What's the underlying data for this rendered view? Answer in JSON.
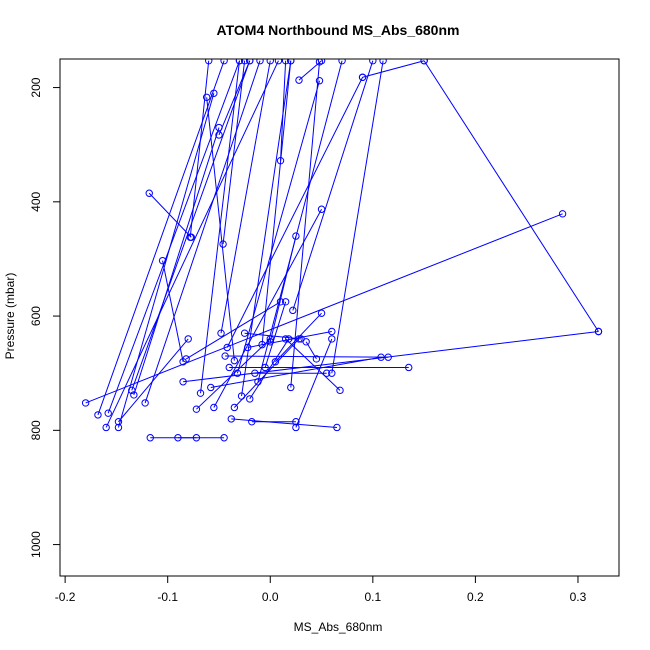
{
  "chart_data": {
    "type": "line",
    "title": "ATOM4 Northbound MS_Abs_680nm",
    "xlabel": "MS_Abs_680nm",
    "ylabel": "Pressure (mbar)",
    "xlim": [
      -0.205,
      0.34
    ],
    "ylim": [
      1055,
      150
    ],
    "y_reversed": true,
    "x_ticks": [
      -0.2,
      -0.1,
      0.0,
      0.1,
      0.2,
      0.3
    ],
    "x_tick_labels": [
      "-0.2",
      "-0.1",
      "0.0",
      "0.1",
      "0.2",
      "0.3"
    ],
    "y_ticks": [
      200,
      400,
      600,
      800,
      1000
    ],
    "y_tick_labels": [
      "200",
      "400",
      "600",
      "800",
      "1000"
    ],
    "grid": false,
    "series_color": "#0000ff",
    "marker": "open-circle",
    "series": [
      {
        "values": [
          [
            -0.18,
            752
          ],
          [
            0.285,
            421
          ]
        ]
      },
      {
        "values": [
          [
            -0.168,
            773
          ],
          [
            -0.045,
            153
          ]
        ]
      },
      {
        "values": [
          [
            -0.16,
            795
          ],
          [
            0.008,
            153
          ]
        ]
      },
      {
        "values": [
          [
            -0.158,
            770
          ],
          [
            -0.03,
            153
          ]
        ]
      },
      {
        "values": [
          [
            -0.148,
            795
          ],
          [
            -0.055,
            210
          ]
        ]
      },
      {
        "values": [
          [
            -0.148,
            785
          ],
          [
            -0.08,
            640
          ]
        ]
      },
      {
        "values": [
          [
            -0.135,
            730
          ],
          [
            -0.02,
            153
          ]
        ]
      },
      {
        "values": [
          [
            -0.133,
            738
          ],
          [
            -0.05,
            270
          ]
        ]
      },
      {
        "values": [
          [
            -0.122,
            752
          ],
          [
            -0.01,
            153
          ]
        ]
      },
      {
        "values": [
          [
            -0.118,
            385
          ],
          [
            -0.077,
            462
          ]
        ]
      },
      {
        "values": [
          [
            -0.117,
            813
          ],
          [
            -0.045,
            813
          ]
        ]
      },
      {
        "values": [
          [
            -0.105,
            503
          ],
          [
            -0.085,
            680
          ]
        ]
      },
      {
        "values": [
          [
            -0.09,
            813
          ],
          [
            -0.072,
            813
          ]
        ]
      },
      {
        "values": [
          [
            -0.085,
            715
          ],
          [
            0.32,
            627
          ]
        ]
      },
      {
        "values": [
          [
            -0.082,
            675
          ],
          [
            0.01,
            575
          ]
        ]
      },
      {
        "values": [
          [
            -0.078,
            462
          ],
          [
            -0.06,
            153
          ]
        ]
      },
      {
        "values": [
          [
            -0.072,
            763
          ],
          [
            0.0,
            640
          ]
        ]
      },
      {
        "values": [
          [
            -0.068,
            735
          ],
          [
            -0.03,
            153
          ]
        ]
      },
      {
        "values": [
          [
            -0.062,
            217
          ],
          [
            -0.035,
            678
          ]
        ]
      },
      {
        "values": [
          [
            -0.058,
            725
          ],
          [
            0.108,
            672
          ]
        ]
      },
      {
        "values": [
          [
            -0.055,
            760
          ],
          [
            0.05,
            413
          ]
        ]
      },
      {
        "values": [
          [
            -0.05,
            283
          ],
          [
            -0.02,
            153
          ]
        ]
      },
      {
        "values": [
          [
            -0.048,
            630
          ],
          [
            0.0,
            153
          ]
        ]
      },
      {
        "values": [
          [
            -0.046,
            474
          ],
          [
            -0.025,
            153
          ]
        ]
      },
      {
        "values": [
          [
            -0.044,
            670
          ],
          [
            0.115,
            672
          ]
        ]
      },
      {
        "values": [
          [
            -0.042,
            655
          ],
          [
            0.09,
            182
          ]
        ]
      },
      {
        "values": [
          [
            -0.04,
            690
          ],
          [
            0.135,
            690
          ]
        ]
      },
      {
        "values": [
          [
            -0.038,
            780
          ],
          [
            0.065,
            795
          ]
        ]
      },
      {
        "values": [
          [
            -0.035,
            760
          ],
          [
            0.028,
            640
          ]
        ]
      },
      {
        "values": [
          [
            -0.032,
            700
          ],
          [
            0.048,
            188
          ]
        ]
      },
      {
        "values": [
          [
            -0.028,
            740
          ],
          [
            0.02,
            153
          ]
        ]
      },
      {
        "values": [
          [
            -0.025,
            630
          ],
          [
            0.03,
            640
          ]
        ]
      },
      {
        "values": [
          [
            -0.022,
            655
          ],
          [
            0.06,
            627
          ]
        ]
      },
      {
        "values": [
          [
            -0.02,
            745
          ],
          [
            0.018,
            640
          ]
        ]
      },
      {
        "values": [
          [
            -0.018,
            785
          ],
          [
            0.025,
            785
          ]
        ]
      },
      {
        "values": [
          [
            -0.015,
            700
          ],
          [
            0.055,
            700
          ]
        ]
      },
      {
        "values": [
          [
            -0.012,
            715
          ],
          [
            0.07,
            153
          ]
        ]
      },
      {
        "values": [
          [
            -0.008,
            650
          ],
          [
            0.02,
            153
          ]
        ]
      },
      {
        "values": [
          [
            -0.005,
            690
          ],
          [
            0.015,
            575
          ]
        ]
      },
      {
        "values": [
          [
            0.0,
            645
          ],
          [
            0.025,
            460
          ]
        ]
      },
      {
        "values": [
          [
            0.005,
            680
          ],
          [
            0.05,
            595
          ]
        ]
      },
      {
        "values": [
          [
            0.01,
            328
          ],
          [
            0.015,
            153
          ]
        ]
      },
      {
        "values": [
          [
            0.015,
            640
          ],
          [
            0.068,
            730
          ]
        ]
      },
      {
        "values": [
          [
            0.02,
            725
          ],
          [
            0.048,
            155
          ]
        ]
      },
      {
        "values": [
          [
            0.022,
            590
          ],
          [
            0.1,
            153
          ]
        ]
      },
      {
        "values": [
          [
            0.025,
            795
          ],
          [
            0.06,
            640
          ]
        ]
      },
      {
        "values": [
          [
            0.028,
            187
          ],
          [
            0.05,
            153
          ]
        ]
      },
      {
        "values": [
          [
            0.035,
            645
          ],
          [
            0.045,
            675
          ]
        ]
      },
      {
        "values": [
          [
            0.06,
            700
          ],
          [
            0.11,
            153
          ]
        ]
      },
      {
        "values": [
          [
            0.09,
            182
          ],
          [
            0.15,
            153
          ]
        ]
      },
      {
        "values": [
          [
            0.15,
            153
          ],
          [
            0.32,
            627
          ]
        ]
      }
    ]
  }
}
